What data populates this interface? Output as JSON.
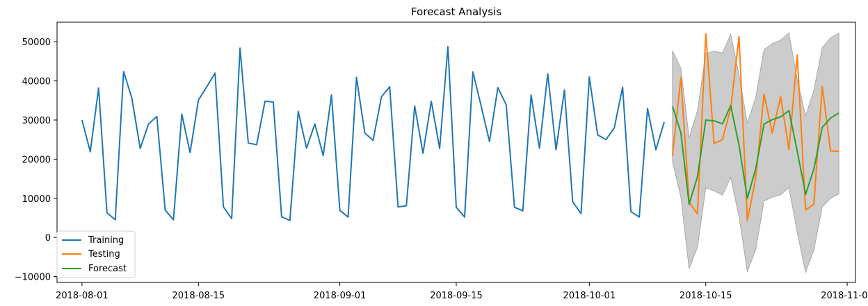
{
  "chart_data": {
    "type": "line",
    "title": "Forecast Analysis",
    "xlabel": "",
    "ylabel": "",
    "x_start": "2018-08-01",
    "xlim": [
      "2018-07-29",
      "2018-11-02"
    ],
    "ylim": [
      -11500,
      55000
    ],
    "x_ticks": [
      {
        "date": "2018-08-01",
        "label": "2018-08-01"
      },
      {
        "date": "2018-08-15",
        "label": "2018-08-15"
      },
      {
        "date": "2018-09-01",
        "label": "2018-09-01"
      },
      {
        "date": "2018-09-15",
        "label": "2018-09-15"
      },
      {
        "date": "2018-10-01",
        "label": "2018-10-01"
      },
      {
        "date": "2018-10-15",
        "label": "2018-10-15"
      },
      {
        "date": "2018-11-01",
        "label": "2018-11-01"
      }
    ],
    "y_ticks": [
      {
        "value": -10000,
        "label": "−10000"
      },
      {
        "value": 0,
        "label": "0"
      },
      {
        "value": 10000,
        "label": "10000"
      },
      {
        "value": 20000,
        "label": "20000"
      },
      {
        "value": 30000,
        "label": "30000"
      },
      {
        "value": 40000,
        "label": "40000"
      },
      {
        "value": 50000,
        "label": "50000"
      }
    ],
    "grid": false,
    "legend_position": "lower-left",
    "series": [
      {
        "name": "Training",
        "color": "#1f77b4",
        "start": "2018-08-01",
        "values": [
          30000,
          21900,
          38200,
          6300,
          4500,
          42400,
          35600,
          22700,
          29000,
          30900,
          7000,
          4500,
          31500,
          21700,
          35100,
          38500,
          42000,
          7800,
          4800,
          48400,
          24100,
          23700,
          34800,
          34600,
          5300,
          4300,
          32200,
          22800,
          29000,
          20900,
          36400,
          6900,
          5200,
          40900,
          26700,
          24800,
          35900,
          38500,
          7800,
          8100,
          33600,
          21500,
          34800,
          22700,
          48800,
          7700,
          5200,
          42300,
          33500,
          24500,
          38300,
          33900,
          7700,
          6800,
          36400,
          22800,
          41800,
          22400,
          37700,
          9100,
          6100,
          41000,
          26200,
          25000,
          28000,
          38400,
          6600,
          5200,
          33000,
          22400,
          29500
        ]
      },
      {
        "name": "Testing",
        "color": "#ff7f0e",
        "start": "2018-10-11",
        "values": [
          20900,
          40900,
          9000,
          6000,
          52000,
          24000,
          25000,
          33000,
          51300,
          4300,
          15000,
          36600,
          26700,
          36000,
          22500,
          46600,
          7000,
          8500,
          38600,
          22100,
          22000
        ]
      },
      {
        "name": "Forecast",
        "color": "#2ca02c",
        "start": "2018-10-11",
        "values": [
          33500,
          26800,
          8500,
          15500,
          30000,
          29800,
          29000,
          33700,
          23500,
          10000,
          17500,
          29000,
          30100,
          30800,
          32400,
          22000,
          11000,
          17500,
          28100,
          30500,
          31800
        ]
      }
    ],
    "interval": {
      "color": "#cccccc",
      "edge_color": "#a8a8a8",
      "start": "2018-10-11",
      "upper": [
        47700,
        43200,
        25400,
        32400,
        47000,
        47600,
        47100,
        51900,
        41500,
        29100,
        35800,
        48000,
        49500,
        50400,
        52200,
        40300,
        31100,
        37600,
        48500,
        51000,
        52200
      ],
      "lower": [
        19300,
        10400,
        -8000,
        -2500,
        12700,
        11900,
        10800,
        15300,
        5300,
        -8700,
        -3200,
        9300,
        10300,
        10900,
        12700,
        1300,
        -8900,
        -3200,
        7700,
        10000,
        11100
      ]
    }
  }
}
